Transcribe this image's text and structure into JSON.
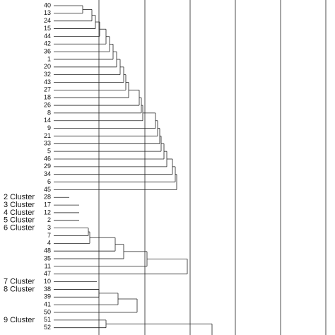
{
  "leaves": [
    "40",
    "13",
    "24",
    "15",
    "44",
    "42",
    "36",
    "1",
    "20",
    "32",
    "43",
    "27",
    "18",
    "26",
    "8",
    "14",
    "9",
    "21",
    "33",
    "5",
    "46",
    "29",
    "34",
    "6",
    "45",
    "28",
    "17",
    "12",
    "2",
    "3",
    "7",
    "4",
    "48",
    "35",
    "11",
    "47",
    "10",
    "38",
    "39",
    "41",
    "50",
    "51",
    "52"
  ],
  "cluster_labels": [
    {
      "leaf": "28",
      "label": "2 Cluster"
    },
    {
      "leaf": "17",
      "label": "3 Cluster"
    },
    {
      "leaf": "12",
      "label": "4 Cluster"
    },
    {
      "leaf": "2",
      "label": "5 Cluster"
    },
    {
      "leaf": "3",
      "label": "6 Cluster"
    },
    {
      "leaf": "10",
      "label": "7 Cluster"
    },
    {
      "leaf": "38",
      "label": "8 Cluster"
    },
    {
      "leaf": "51",
      "label": "9 Cluster"
    }
  ]
}
